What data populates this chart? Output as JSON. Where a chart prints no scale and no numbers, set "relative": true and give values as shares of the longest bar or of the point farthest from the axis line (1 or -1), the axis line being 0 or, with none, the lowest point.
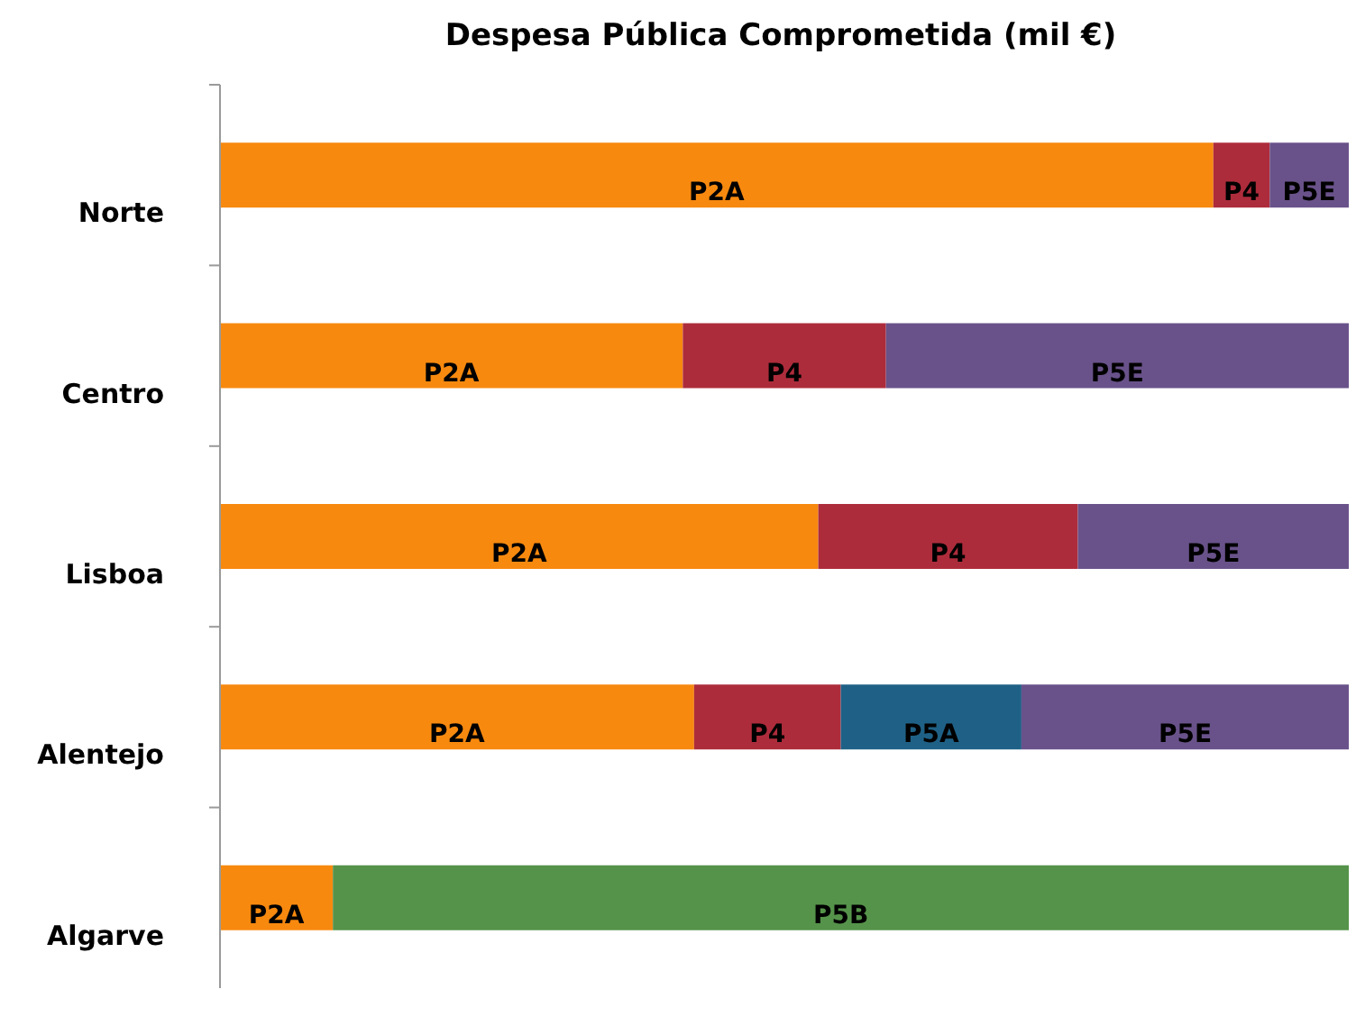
{
  "chart_data": {
    "type": "bar",
    "title": "Despesa Pública Comprometida (mil €)",
    "orientation": "horizontal",
    "stacked": true,
    "relative": true,
    "categories": [
      "Norte",
      "Centro",
      "Lisboa",
      "Alentejo",
      "Algarve"
    ],
    "series": [
      {
        "name": "P2A",
        "color": "#f7890f",
        "values": [
          0.88,
          0.41,
          0.53,
          0.42,
          0.1
        ]
      },
      {
        "name": "P4",
        "color": "#ad2c3b",
        "values": [
          0.05,
          0.18,
          0.23,
          0.13,
          null
        ]
      },
      {
        "name": "P5A",
        "color": "#1f6186",
        "values": [
          null,
          null,
          null,
          0.16,
          null
        ]
      },
      {
        "name": "P5B",
        "color": "#55934a",
        "values": [
          null,
          null,
          null,
          null,
          0.9
        ]
      },
      {
        "name": "P5E",
        "color": "#69528a",
        "values": [
          0.07,
          0.41,
          0.24,
          0.29,
          null
        ]
      }
    ]
  }
}
